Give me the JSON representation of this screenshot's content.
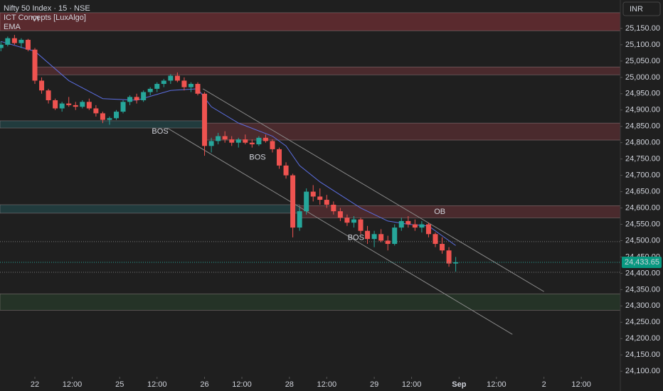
{
  "chart_data": {
    "type": "candlestick",
    "title": "Nifty 50 Index · 15 · NSE",
    "indicators": [
      "ICT Concepts [LuxAlgo]",
      "EMA"
    ],
    "currency": "INR",
    "xlim": [
      -10.27,
      172.5
    ],
    "ylim": [
      24083,
      25237
    ],
    "xticks": [
      {
        "value": 0,
        "label": "22"
      },
      {
        "value": 11,
        "label": "12:00"
      },
      {
        "value": 25,
        "label": "25"
      },
      {
        "value": 36,
        "label": "12:00"
      },
      {
        "value": 50,
        "label": "26"
      },
      {
        "value": 61,
        "label": "12:00"
      },
      {
        "value": 75,
        "label": "28"
      },
      {
        "value": 86,
        "label": "12:00"
      },
      {
        "value": 100,
        "label": "29"
      },
      {
        "value": 111,
        "label": "12:00"
      },
      {
        "value": 125,
        "label": "Sep"
      },
      {
        "value": 136,
        "label": "12:00"
      },
      {
        "value": 150,
        "label": "2"
      },
      {
        "value": 161,
        "label": "12:00"
      }
    ],
    "yticks": [
      {
        "value": 25150,
        "label": "25,150.00"
      },
      {
        "value": 25100,
        "label": "25,100.00"
      },
      {
        "value": 25050,
        "label": "25,050.00"
      },
      {
        "value": 25000,
        "label": "25,000.00"
      },
      {
        "value": 24950,
        "label": "24,950.00"
      },
      {
        "value": 24900,
        "label": "24,900.00"
      },
      {
        "value": 24850,
        "label": "24,850.00"
      },
      {
        "value": 24800,
        "label": "24,800.00"
      },
      {
        "value": 24750,
        "label": "24,750.00"
      },
      {
        "value": 24700,
        "label": "24,700.00"
      },
      {
        "value": 24650,
        "label": "24,650.00"
      },
      {
        "value": 24600,
        "label": "24,600.00"
      },
      {
        "value": 24550,
        "label": "24,550.00"
      },
      {
        "value": 24500,
        "label": "24,500.00"
      },
      {
        "value": 24450,
        "label": "24,450.00"
      },
      {
        "value": 24400,
        "label": "24,400.00"
      },
      {
        "value": 24350,
        "label": "24,350.00"
      },
      {
        "value": 24300,
        "label": "24,300.00"
      },
      {
        "value": 24250,
        "label": "24,250.00"
      },
      {
        "value": 24200,
        "label": "24,200.00"
      },
      {
        "value": 24150,
        "label": "24,150.00"
      },
      {
        "value": 24100,
        "label": "24,100.00"
      }
    ],
    "up_color": "#26a69a",
    "down_color": "#ef5350",
    "x": [
      -10,
      -8,
      -6,
      -4,
      -2,
      0,
      2,
      4,
      6,
      8,
      10,
      12,
      14,
      16,
      18,
      20,
      22,
      24,
      26,
      28,
      30,
      32,
      34,
      36,
      38,
      40,
      42,
      44,
      46,
      48,
      50,
      52,
      54,
      56,
      58,
      60,
      62,
      64,
      66,
      68,
      70,
      72,
      74,
      76,
      78,
      80,
      82,
      84,
      86,
      88,
      90,
      92,
      94,
      96,
      98,
      100,
      102,
      104,
      106,
      108,
      110,
      112,
      114,
      116,
      118,
      120,
      122,
      124
    ],
    "open": [
      25090,
      25100,
      25120,
      25105,
      25115,
      25085,
      24990,
      24960,
      24930,
      24905,
      24920,
      24915,
      24910,
      24925,
      24905,
      24890,
      24870,
      24875,
      24895,
      24925,
      24940,
      24930,
      24955,
      24965,
      24980,
      24990,
      25005,
      24990,
      24970,
      24980,
      24950,
      24790,
      24805,
      24820,
      24810,
      24800,
      24810,
      24800,
      24795,
      24815,
      24805,
      24780,
      24730,
      24700,
      24540,
      24590,
      24650,
      24635,
      24625,
      24610,
      24590,
      24570,
      24555,
      24565,
      24530,
      24505,
      24520,
      24500,
      24490,
      24540,
      24560,
      24550,
      24540,
      24550,
      24520,
      24490,
      24470,
      24430
    ],
    "high": [
      25110,
      25125,
      25130,
      25120,
      25118,
      25090,
      25000,
      24965,
      24935,
      24925,
      24940,
      24925,
      24930,
      24935,
      24915,
      24895,
      24880,
      24900,
      24930,
      24945,
      24950,
      24960,
      24970,
      24985,
      24995,
      25010,
      25015,
      25000,
      24985,
      24985,
      24955,
      24815,
      24830,
      24835,
      24820,
      24815,
      24825,
      24810,
      24820,
      24825,
      24810,
      24785,
      24740,
      24705,
      24600,
      24660,
      24670,
      24660,
      24640,
      24620,
      24600,
      24580,
      24575,
      24570,
      24545,
      24530,
      24535,
      24515,
      24550,
      24570,
      24575,
      24565,
      24560,
      24555,
      24525,
      24510,
      24480,
      24450
    ],
    "low": [
      25080,
      25095,
      25100,
      25090,
      25080,
      24980,
      24950,
      24920,
      24900,
      24895,
      24910,
      24900,
      24905,
      24900,
      24880,
      24860,
      24855,
      24870,
      24890,
      24915,
      24920,
      24925,
      24945,
      24955,
      24970,
      24980,
      24985,
      24960,
      24955,
      24945,
      24760,
      24770,
      24795,
      24800,
      24790,
      24785,
      24795,
      24785,
      24790,
      24800,
      24770,
      24720,
      24690,
      24510,
      24530,
      24580,
      24620,
      24610,
      24600,
      24580,
      24560,
      24545,
      24540,
      24520,
      24490,
      24480,
      24495,
      24470,
      24485,
      24530,
      24540,
      24530,
      24525,
      24510,
      24480,
      24460,
      24420,
      24405
    ],
    "close": [
      25100,
      25120,
      25105,
      25115,
      25085,
      24990,
      24960,
      24930,
      24905,
      24920,
      24915,
      24910,
      24925,
      24905,
      24890,
      24870,
      24875,
      24895,
      24925,
      24940,
      24930,
      24955,
      24965,
      24980,
      24990,
      25005,
      24990,
      24970,
      24980,
      24950,
      24790,
      24805,
      24820,
      24810,
      24800,
      24810,
      24800,
      24795,
      24815,
      24805,
      24780,
      24730,
      24700,
      24540,
      24590,
      24650,
      24635,
      24625,
      24610,
      24590,
      24570,
      24555,
      24565,
      24530,
      24505,
      24520,
      24500,
      24490,
      24540,
      24560,
      24550,
      24540,
      24550,
      24520,
      24490,
      24470,
      24430,
      24433.65
    ],
    "ema": {
      "color": "#5b6ee1",
      "x": [
        -10,
        0,
        10,
        20,
        30,
        40,
        48,
        52,
        60,
        70,
        74,
        78,
        84,
        90,
        96,
        104,
        110,
        116,
        122,
        124
      ],
      "values": [
        25110,
        25080,
        24990,
        24935,
        24930,
        24960,
        24965,
        24910,
        24860,
        24820,
        24790,
        24730,
        24680,
        24640,
        24600,
        24560,
        24550,
        24545,
        24500,
        24485
      ]
    },
    "last_price": {
      "value": 24433.65,
      "label": "24,433.65"
    },
    "zones": [
      {
        "color": "#5a2a2e",
        "x": [
          -10.27,
          172.5
        ],
        "low": 25143,
        "high": 25198
      },
      {
        "color": "#4a2a2d",
        "x": [
          0,
          172.5
        ],
        "low": 25008,
        "high": 25032
      },
      {
        "color": "#213b3d",
        "x": [
          -10.27,
          50
        ],
        "low": 24845,
        "high": 24867
      },
      {
        "color": "#4a2a2d",
        "x": [
          50,
          172.5
        ],
        "low": 24808,
        "high": 24860
      },
      {
        "color": "#213b3d",
        "x": [
          -10.27,
          78
        ],
        "low": 24584,
        "high": 24610
      },
      {
        "color": "#4a2a2d",
        "x": [
          78,
          172.5
        ],
        "low": 24570,
        "high": 24607
      },
      {
        "color": "#253327",
        "x": [
          -10.27,
          172.5
        ],
        "low": 24287,
        "high": 24337
      }
    ],
    "levels": [
      24497,
      24403
    ],
    "trendlines": [
      {
        "x": [
          49.5,
          150
        ],
        "y": [
          24965,
          24344
        ]
      },
      {
        "x": [
          39,
          140.7
        ],
        "y": [
          24845,
          24213
        ]
      }
    ],
    "annotations": [
      {
        "text": "VI",
        "x": 0.2,
        "y": 25178,
        "color": "#26a69a"
      },
      {
        "text": "OB",
        "x": 119.3,
        "y": 24588,
        "color": "#ef5350"
      },
      {
        "text": "BOS",
        "x": 36.9,
        "y": 24834,
        "color": "#ef5350"
      },
      {
        "text": "BOS",
        "x": 65.6,
        "y": 24754,
        "color": "#ef5350"
      },
      {
        "text": "BOS",
        "x": 94.6,
        "y": 24508,
        "color": "#ef5350"
      }
    ]
  }
}
